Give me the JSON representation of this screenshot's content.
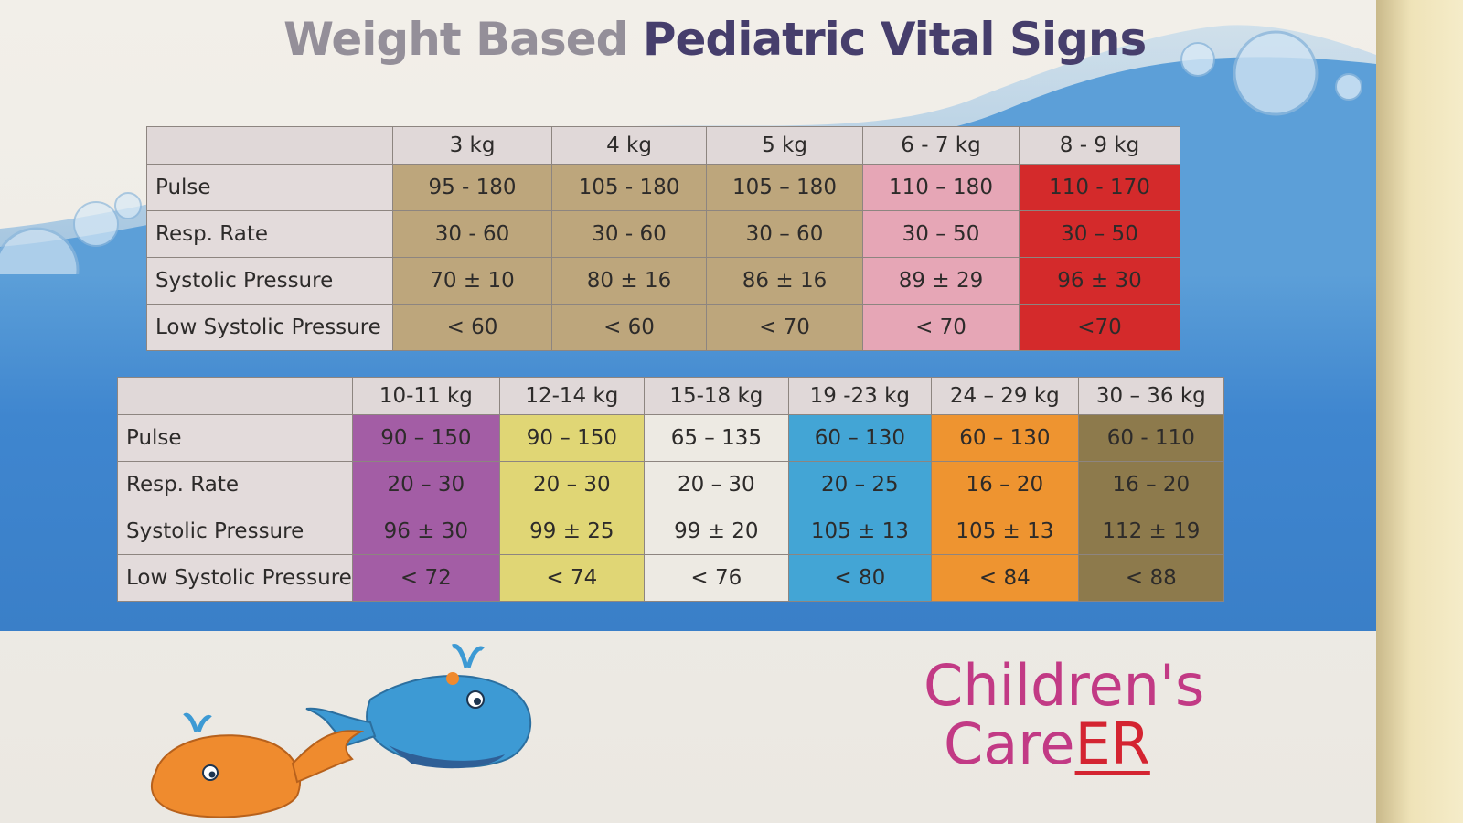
{
  "title": {
    "part1": "Weight Based",
    "part2": "Pediatric Vital Signs"
  },
  "row_labels": [
    "Pulse",
    "Resp. Rate",
    "Systolic Pressure",
    "Low Systolic Pressure"
  ],
  "table_a": {
    "columns": [
      {
        "weight": "3 kg",
        "color": "#bda67c",
        "values": [
          "95 - 180",
          "30 - 60",
          "70 ± 10",
          "< 60"
        ]
      },
      {
        "weight": "4 kg",
        "color": "#bda67c",
        "values": [
          "105 - 180",
          "30 - 60",
          "80 ± 16",
          "< 60"
        ]
      },
      {
        "weight": "5 kg",
        "color": "#bda67c",
        "values": [
          "105 – 180",
          "30 – 60",
          "86 ± 16",
          "< 70"
        ]
      },
      {
        "weight": "6 - 7 kg",
        "color": "#e6a6b6",
        "values": [
          "110 – 180",
          "30 – 50",
          "89 ± 29",
          "< 70"
        ]
      },
      {
        "weight": "8 - 9 kg",
        "color": "#d42a2b",
        "values": [
          "110 - 170",
          "30 – 50",
          "96 ± 30",
          "<70"
        ]
      }
    ]
  },
  "table_b": {
    "columns": [
      {
        "weight": "10-11 kg",
        "color": "#a35da5",
        "values": [
          "90 – 150",
          "20 – 30",
          "96 ± 30",
          "< 72"
        ]
      },
      {
        "weight": "12-14 kg",
        "color": "#e0d675",
        "values": [
          "90 – 150",
          "20 – 30",
          "99 ± 25",
          "< 74"
        ]
      },
      {
        "weight": "15-18 kg",
        "color": "#edeae3",
        "values": [
          "65 – 135",
          "20 – 30",
          "99 ± 20",
          "< 76"
        ]
      },
      {
        "weight": "19 -23 kg",
        "color": "#43a5d5",
        "values": [
          "60 – 130",
          "20 – 25",
          "105 ± 13",
          "< 80"
        ]
      },
      {
        "weight": "24 – 29 kg",
        "color": "#ee9430",
        "values": [
          "60 – 130",
          "16 – 20",
          "105 ± 13",
          "< 84"
        ]
      },
      {
        "weight": "30 – 36 kg",
        "color": "#8d7a4c",
        "values": [
          "60 - 110",
          "16 – 20",
          "112 ± 19",
          "< 88"
        ]
      }
    ]
  },
  "logo": {
    "line1": "Children's",
    "line2_care": "Care",
    "line2_er": "ER"
  },
  "illustration": "whales-icon"
}
